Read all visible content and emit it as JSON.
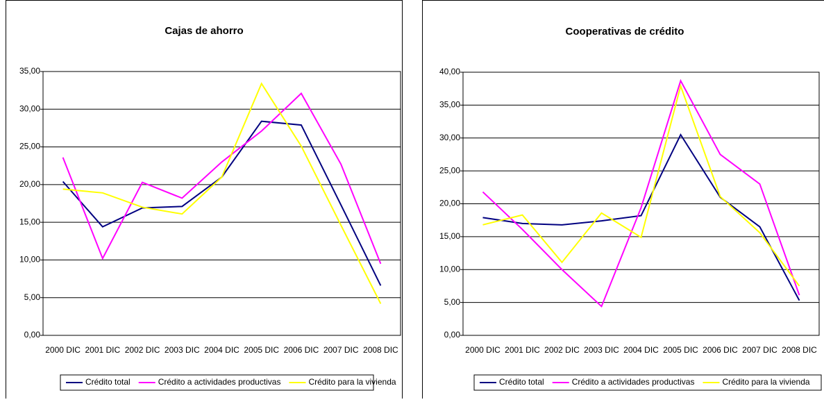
{
  "chart_data": [
    {
      "type": "line",
      "title": "Cajas de ahorro",
      "categories": [
        "2000 DIC",
        "2001 DIC",
        "2002 DIC",
        "2003 DIC",
        "2004 DIC",
        "2005 DIC",
        "2006 DIC",
        "2007 DIC",
        "2008 DIC"
      ],
      "series": [
        {
          "name": "Crédito total",
          "color": "#000080",
          "values": [
            20.4,
            14.4,
            16.9,
            17.1,
            21.0,
            28.4,
            27.9,
            17.3,
            6.6
          ]
        },
        {
          "name": "Crédito a actividades productivas",
          "color": "#ff00ff",
          "values": [
            23.6,
            10.2,
            20.3,
            18.2,
            23.0,
            27.1,
            32.1,
            22.7,
            9.5
          ]
        },
        {
          "name": "Crédito para la vivienda",
          "color": "#ffff00",
          "values": [
            19.4,
            18.9,
            17.0,
            16.1,
            21.0,
            33.4,
            25.1,
            14.6,
            4.2
          ]
        }
      ],
      "ylim": [
        0,
        35
      ],
      "yticks": [
        {
          "value": 0,
          "label": "0,00"
        },
        {
          "value": 5,
          "label": "5,00"
        },
        {
          "value": 10,
          "label": "10,00"
        },
        {
          "value": 15,
          "label": "15,00"
        },
        {
          "value": 20,
          "label": "20,00"
        },
        {
          "value": 25,
          "label": "25,00"
        },
        {
          "value": 30,
          "label": "30,00"
        },
        {
          "value": 35,
          "label": "35,00"
        }
      ],
      "grid": true
    },
    {
      "type": "line",
      "title": "Cooperativas de crédito",
      "categories": [
        "2000 DIC",
        "2001 DIC",
        "2002 DIC",
        "2003 DIC",
        "2004 DIC",
        "2005 DIC",
        "2006 DIC",
        "2007 DIC",
        "2008 DIC"
      ],
      "series": [
        {
          "name": "Crédito total",
          "color": "#000080",
          "values": [
            17.9,
            17.0,
            16.8,
            17.4,
            18.2,
            30.5,
            21.0,
            16.5,
            5.3
          ]
        },
        {
          "name": "Crédito a actividades productivas",
          "color": "#ff00ff",
          "values": [
            21.8,
            16.1,
            10.0,
            4.4,
            19.4,
            38.7,
            27.5,
            23.0,
            6.1
          ]
        },
        {
          "name": "Crédito para la vivienda",
          "color": "#ffff00",
          "values": [
            16.8,
            18.3,
            11.1,
            18.6,
            14.9,
            37.9,
            21.1,
            15.6,
            7.5
          ]
        }
      ],
      "ylim": [
        0,
        40
      ],
      "yticks": [
        {
          "value": 0,
          "label": "0,00"
        },
        {
          "value": 5,
          "label": "5,00"
        },
        {
          "value": 10,
          "label": "10,00"
        },
        {
          "value": 15,
          "label": "15,00"
        },
        {
          "value": 20,
          "label": "20,00"
        },
        {
          "value": 25,
          "label": "25,00"
        },
        {
          "value": 30,
          "label": "30,00"
        },
        {
          "value": 35,
          "label": "35,00"
        },
        {
          "value": 40,
          "label": "40,00"
        }
      ],
      "grid": true
    }
  ]
}
